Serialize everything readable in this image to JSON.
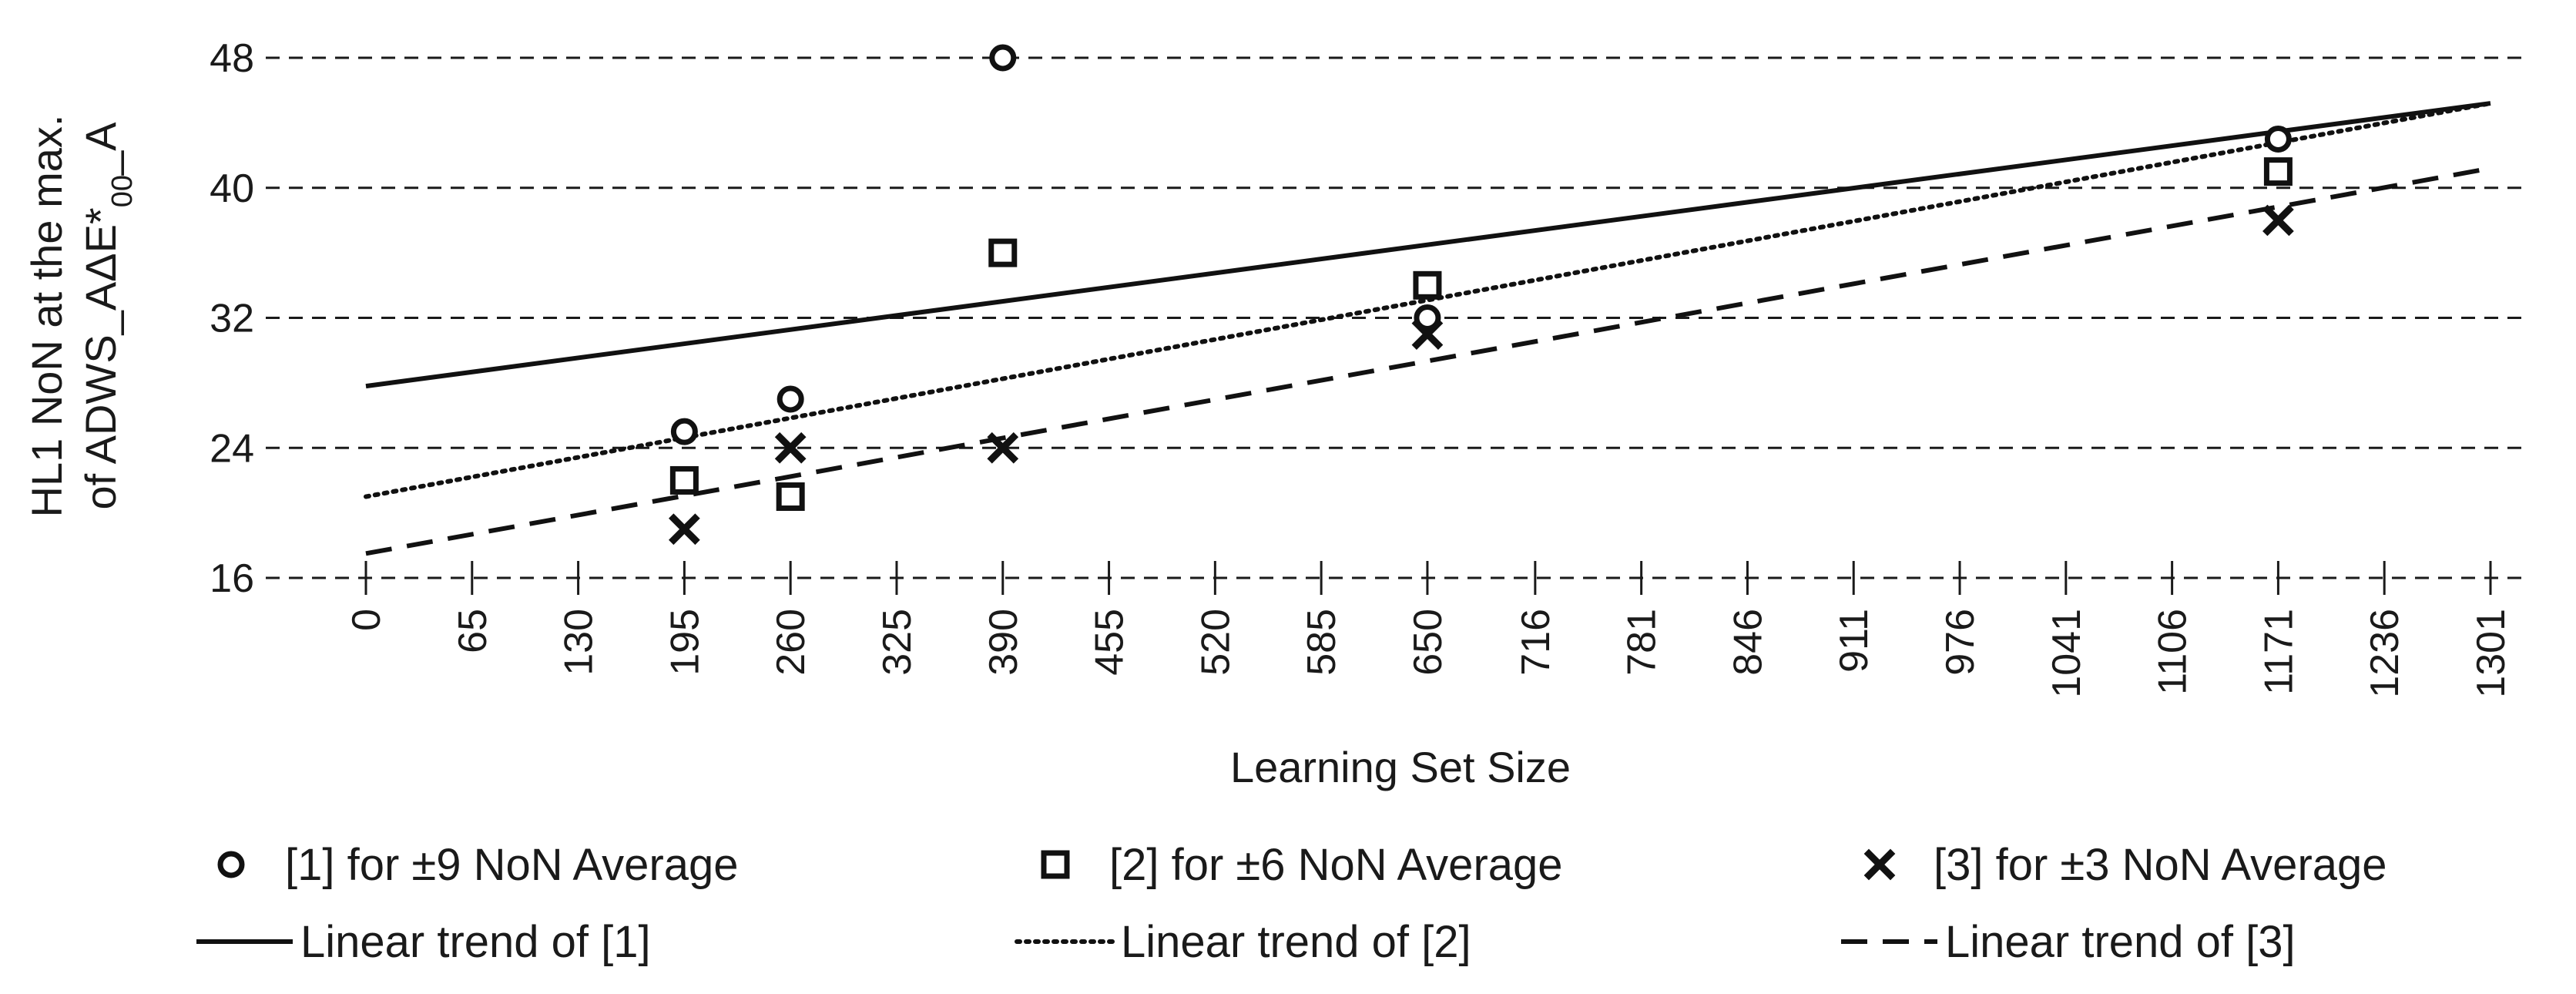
{
  "chart_data": {
    "type": "scatter",
    "title": "",
    "xlabel": "Learning Set Size",
    "ylabel": {
      "line1": "HL1 NoN at the max.",
      "line2_prefix": "of ADWS_AΔE*",
      "line2_subscript": "00",
      "line2_suffix": "_A"
    },
    "x_tick_labels": [
      "0",
      "65",
      "130",
      "195",
      "260",
      "325",
      "390",
      "455",
      "520",
      "585",
      "650",
      "716",
      "781",
      "846",
      "911",
      "976",
      "1041",
      "1106",
      "1171",
      "1236",
      "1301"
    ],
    "x_tick_values": [
      0,
      65,
      130,
      195,
      260,
      325,
      390,
      455,
      520,
      585,
      650,
      716,
      781,
      846,
      911,
      976,
      1041,
      1106,
      1171,
      1236,
      1301
    ],
    "xlim": [
      0,
      1301
    ],
    "y_ticks": [
      16,
      24,
      32,
      40,
      48
    ],
    "ylim": [
      16,
      48
    ],
    "grid": "horizontal dashed",
    "legend_position": "bottom",
    "series": [
      {
        "name": "[1] for ±9 NoN Average",
        "marker": "circle",
        "x": [
          195,
          260,
          390,
          650,
          1171
        ],
        "y": [
          25,
          27,
          48,
          32,
          43
        ]
      },
      {
        "name": "[2] for ±6 NoN Average",
        "marker": "square",
        "x": [
          195,
          260,
          390,
          650,
          1171
        ],
        "y": [
          22,
          21,
          36,
          34,
          41
        ]
      },
      {
        "name": "[3] for ±3 NoN Average",
        "marker": "x",
        "x": [
          195,
          260,
          390,
          650,
          1171
        ],
        "y": [
          19,
          24,
          24,
          31,
          38
        ]
      }
    ],
    "trendlines": [
      {
        "name": "Linear trend of [1]",
        "style": "solid",
        "x": [
          0,
          1301
        ],
        "y": [
          27.8,
          45.2
        ]
      },
      {
        "name": "Linear trend of [2]",
        "style": "dotted",
        "x": [
          0,
          1301
        ],
        "y": [
          21.0,
          45.2
        ]
      },
      {
        "name": "Linear trend of [3]",
        "style": "dashed",
        "x": [
          0,
          1301
        ],
        "y": [
          17.5,
          41.2
        ]
      }
    ]
  }
}
